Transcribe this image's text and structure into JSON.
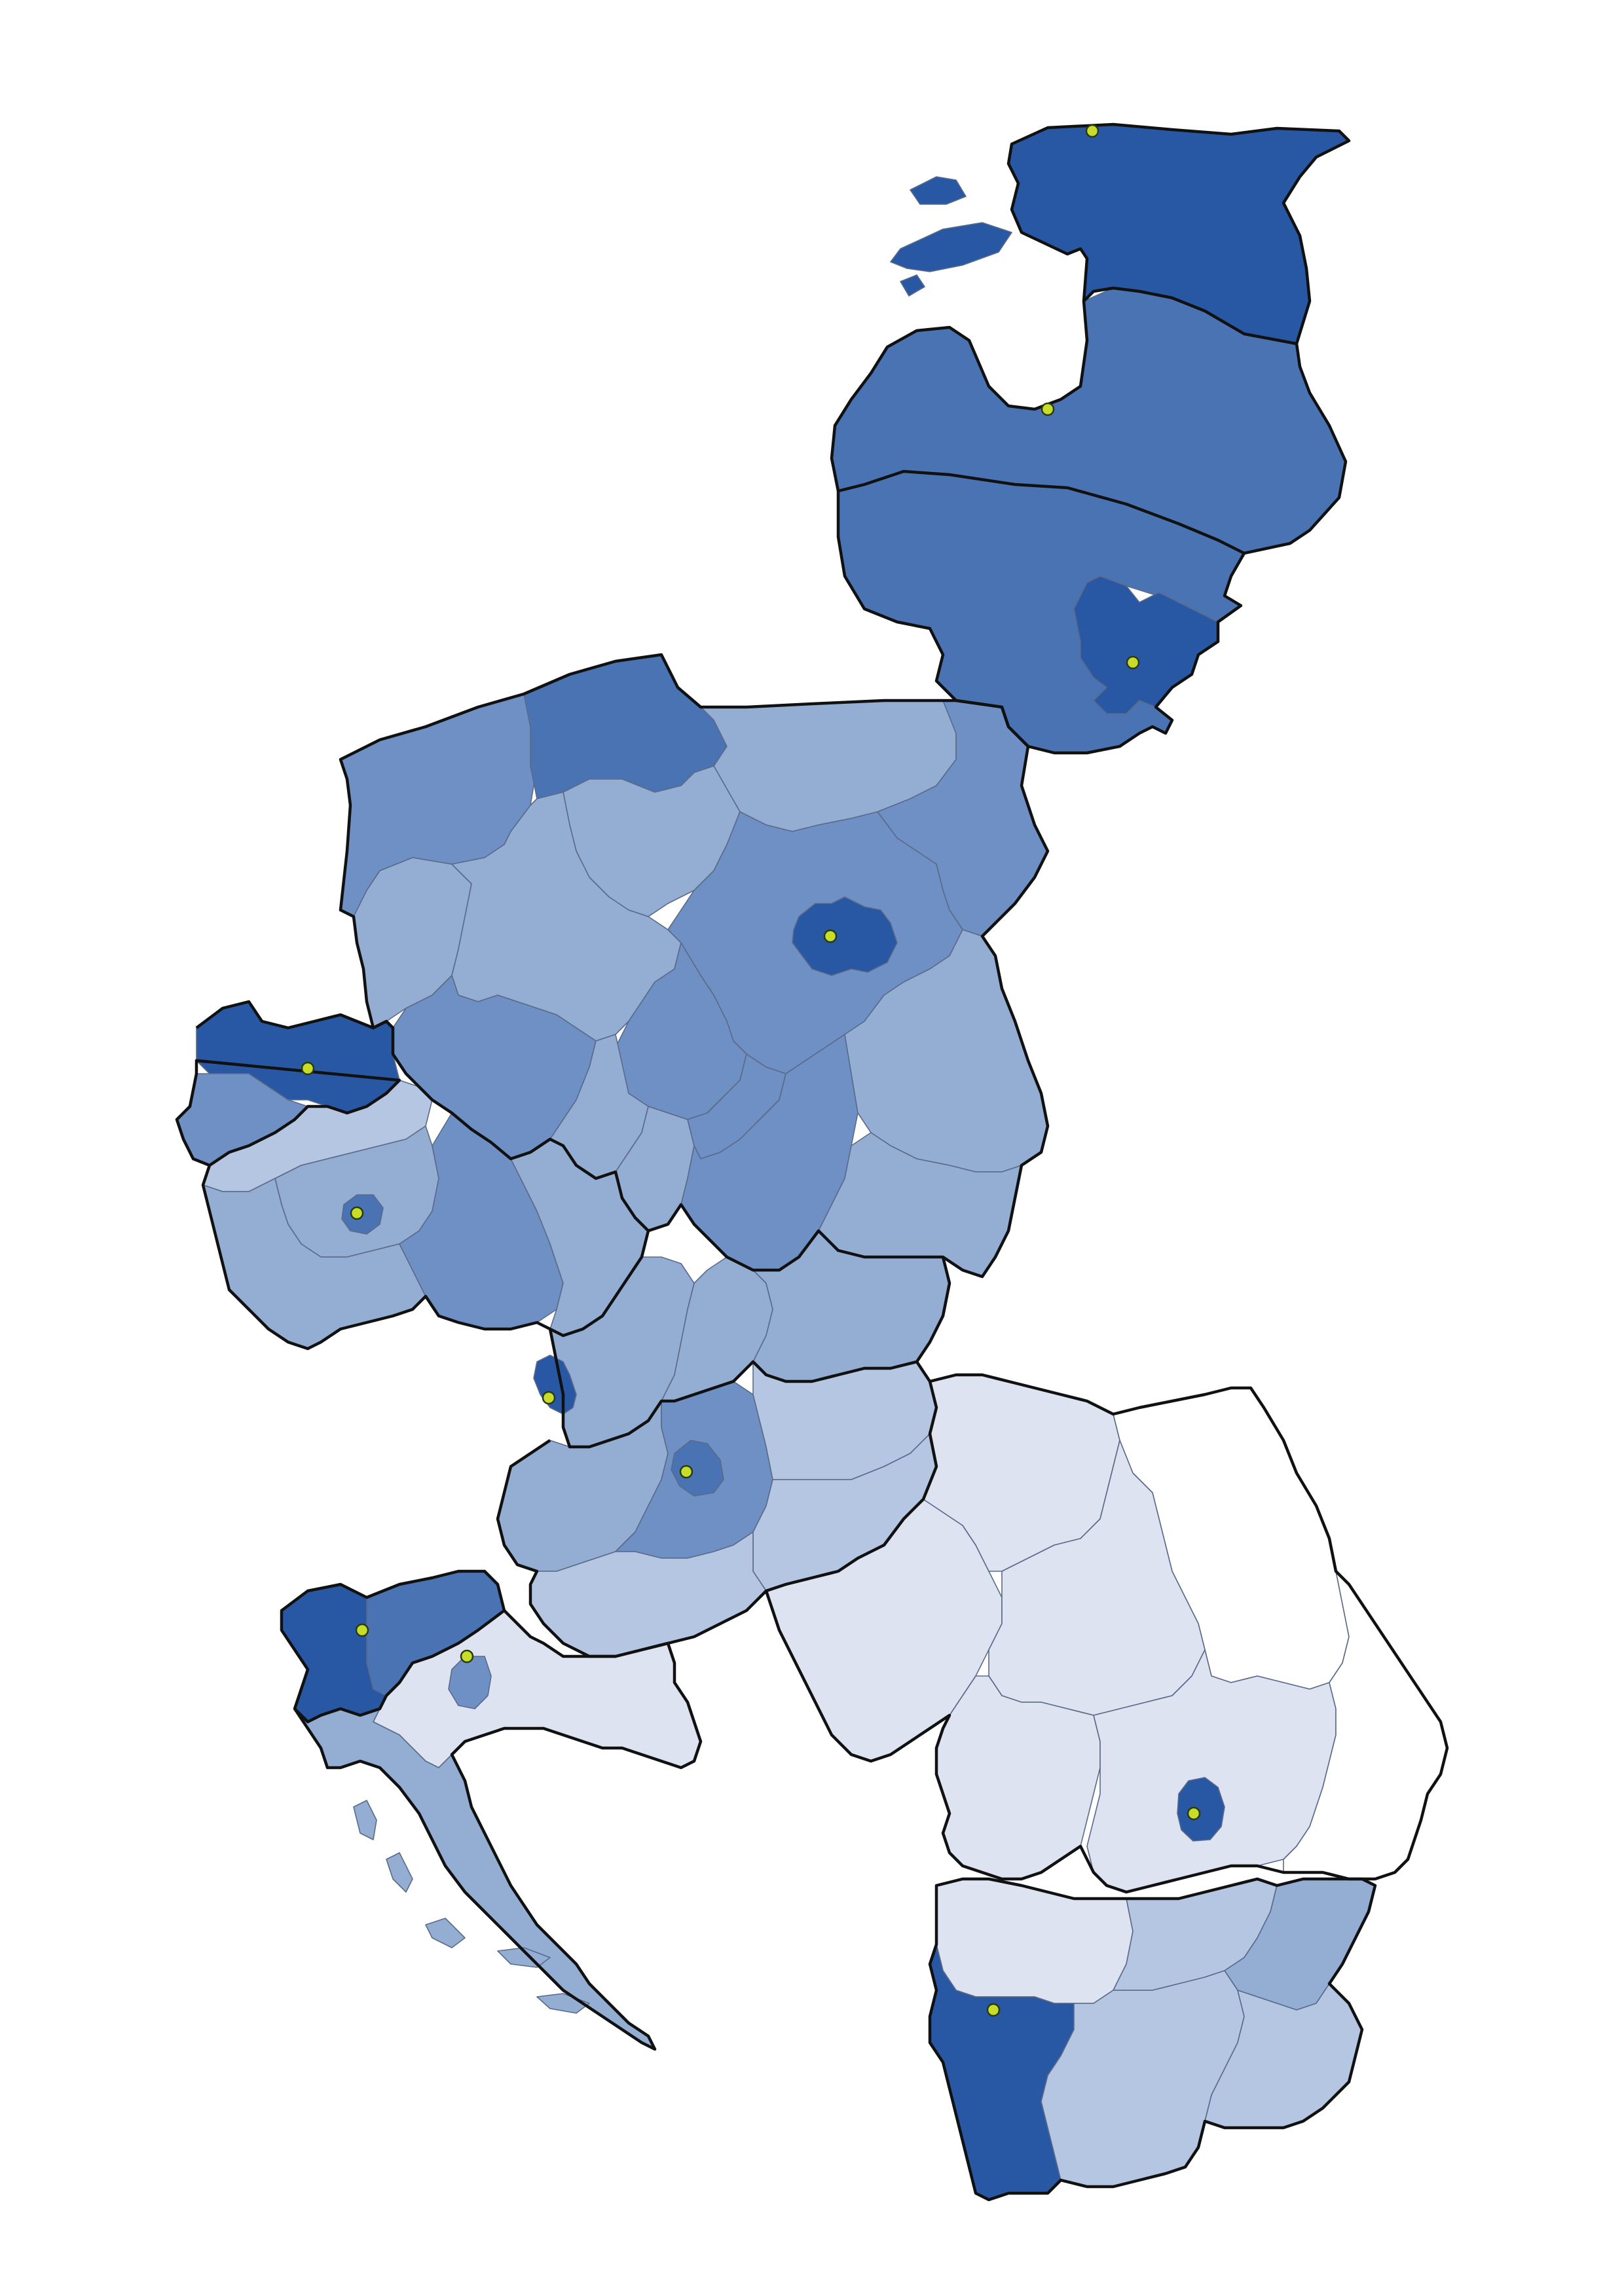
{
  "map": {
    "palette": {
      "level_1": "#dde3f0",
      "level_2": "#b4c6e2",
      "level_3": "#94add2",
      "level_4": "#6f90c4",
      "level_5": "#4a73b3",
      "level_6": "#2858a4",
      "lowest": "#ffffff",
      "capital_marker": "#c8dd2a",
      "border": "#111111"
    },
    "regions": [
      {
        "id": "estonia",
        "level": "level_6",
        "capital": true
      },
      {
        "id": "latvia",
        "level": "level_5",
        "capital": true
      },
      {
        "id": "lithuania",
        "level": "level_5"
      },
      {
        "id": "vilnius",
        "level": "level_6",
        "capital": true
      },
      {
        "id": "poland-pomerania",
        "level": "level_5"
      },
      {
        "id": "poland-west-pomerania",
        "level": "level_4"
      },
      {
        "id": "poland-warmia",
        "level": "level_3"
      },
      {
        "id": "poland-podlaskie",
        "level": "level_4"
      },
      {
        "id": "poland-kuyavia",
        "level": "level_3"
      },
      {
        "id": "poland-lubusz",
        "level": "level_3"
      },
      {
        "id": "poland-greater-poland",
        "level": "level_3"
      },
      {
        "id": "poland-mazovia",
        "level": "level_4"
      },
      {
        "id": "warsaw",
        "level": "level_6",
        "capital": true
      },
      {
        "id": "poland-lodz",
        "level": "level_4"
      },
      {
        "id": "poland-lower-silesia",
        "level": "level_4"
      },
      {
        "id": "poland-opole",
        "level": "level_3"
      },
      {
        "id": "poland-silesia",
        "level": "level_3"
      },
      {
        "id": "poland-lesser-poland",
        "level": "level_4"
      },
      {
        "id": "poland-swietokrzyskie",
        "level": "level_4"
      },
      {
        "id": "poland-lublin",
        "level": "level_3"
      },
      {
        "id": "poland-subcarpathia",
        "level": "level_3"
      },
      {
        "id": "germany-east",
        "level": "level_6",
        "capital": true
      },
      {
        "id": "germany-saxony-west",
        "level": "level_4"
      },
      {
        "id": "czech-northwest",
        "level": "level_2"
      },
      {
        "id": "czech-central",
        "level": "level_3"
      },
      {
        "id": "prague",
        "level": "level_5",
        "capital": true
      },
      {
        "id": "czech-south",
        "level": "level_3"
      },
      {
        "id": "czech-east",
        "level": "level_4"
      },
      {
        "id": "czech-moravia",
        "level": "level_3"
      },
      {
        "id": "slovakia-west",
        "level": "level_3"
      },
      {
        "id": "bratislava",
        "level": "level_6",
        "capital": true
      },
      {
        "id": "slovakia-central",
        "level": "level_3"
      },
      {
        "id": "slovakia-east",
        "level": "level_3"
      },
      {
        "id": "hungary-west",
        "level": "level_3"
      },
      {
        "id": "hungary-central",
        "level": "level_4"
      },
      {
        "id": "budapest",
        "level": "level_5",
        "capital": true
      },
      {
        "id": "hungary-north",
        "level": "level_2"
      },
      {
        "id": "hungary-great-plain",
        "level": "level_2"
      },
      {
        "id": "hungary-south",
        "level": "level_2"
      },
      {
        "id": "slovenia-east",
        "level": "level_5"
      },
      {
        "id": "slovenia-west",
        "level": "level_6",
        "capital": true
      },
      {
        "id": "croatia-continental",
        "level": "level_1"
      },
      {
        "id": "zagreb",
        "level": "level_4",
        "capital": true
      },
      {
        "id": "croatia-adriatic",
        "level": "level_3"
      },
      {
        "id": "romania-northwest",
        "level": "level_1"
      },
      {
        "id": "romania-center",
        "level": "level_1"
      },
      {
        "id": "romania-northeast",
        "level": "lowest"
      },
      {
        "id": "romania-west",
        "level": "level_1"
      },
      {
        "id": "romania-southwest",
        "level": "level_1"
      },
      {
        "id": "romania-south",
        "level": "level_1"
      },
      {
        "id": "romania-southeast",
        "level": "lowest"
      },
      {
        "id": "bucharest",
        "level": "level_6",
        "capital": true
      },
      {
        "id": "bulgaria-northwest",
        "level": "level_1"
      },
      {
        "id": "bulgaria-north-central",
        "level": "level_2"
      },
      {
        "id": "bulgaria-northeast",
        "level": "level_3"
      },
      {
        "id": "bulgaria-southwest",
        "level": "level_6",
        "capital": true
      },
      {
        "id": "bulgaria-south-central",
        "level": "level_2"
      },
      {
        "id": "bulgaria-southeast",
        "level": "level_2"
      }
    ]
  }
}
